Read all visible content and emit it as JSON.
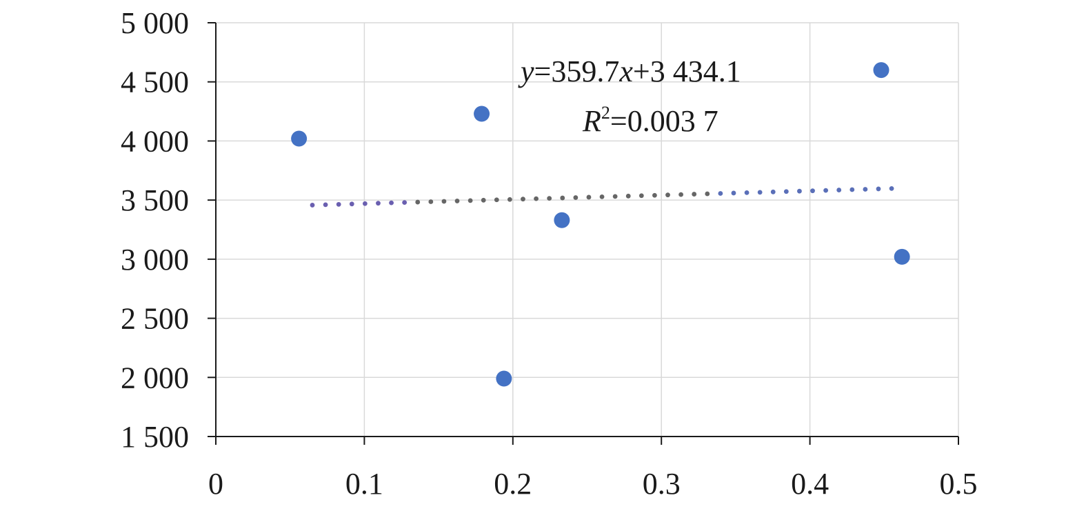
{
  "chart_data": {
    "type": "scatter",
    "title": "",
    "xlabel": "",
    "ylabel": "",
    "xlim": [
      0,
      0.5
    ],
    "ylim": [
      1500,
      5000
    ],
    "x_ticks": [
      0,
      0.1,
      0.2,
      0.3,
      0.4,
      0.5
    ],
    "x_tick_labels": [
      "0",
      "0.1",
      "0.2",
      "0.3",
      "0.4",
      "0.5"
    ],
    "y_ticks": [
      1500,
      2000,
      2500,
      3000,
      3500,
      4000,
      4500,
      5000
    ],
    "y_tick_labels": [
      "1 500",
      "2 000",
      "2 500",
      "3 000",
      "3 500",
      "4 000",
      "4 500",
      "5 000"
    ],
    "grid": true,
    "series": [
      {
        "points": [
          {
            "x": 0.056,
            "y": 4020
          },
          {
            "x": 0.179,
            "y": 4230
          },
          {
            "x": 0.194,
            "y": 1990
          },
          {
            "x": 0.233,
            "y": 3330
          },
          {
            "x": 0.448,
            "y": 4600
          },
          {
            "x": 0.462,
            "y": 3020
          }
        ],
        "color": "#4472c4"
      }
    ],
    "trendline": {
      "slope": 359.7,
      "intercept": 3434.1,
      "x_range": [
        0.065,
        0.455
      ],
      "color_left": "#6a5fb0",
      "color_mid": "#666666",
      "color_right": "#5a6fb8",
      "style": "dotted"
    },
    "annotations": {
      "equation_y": "y",
      "equation_eq1": "=359.7",
      "equation_x": "x",
      "equation_rest": "+3 434.1",
      "r2_R": "R",
      "r2_sup": "2",
      "r2_rest": "=0.003 7"
    }
  }
}
